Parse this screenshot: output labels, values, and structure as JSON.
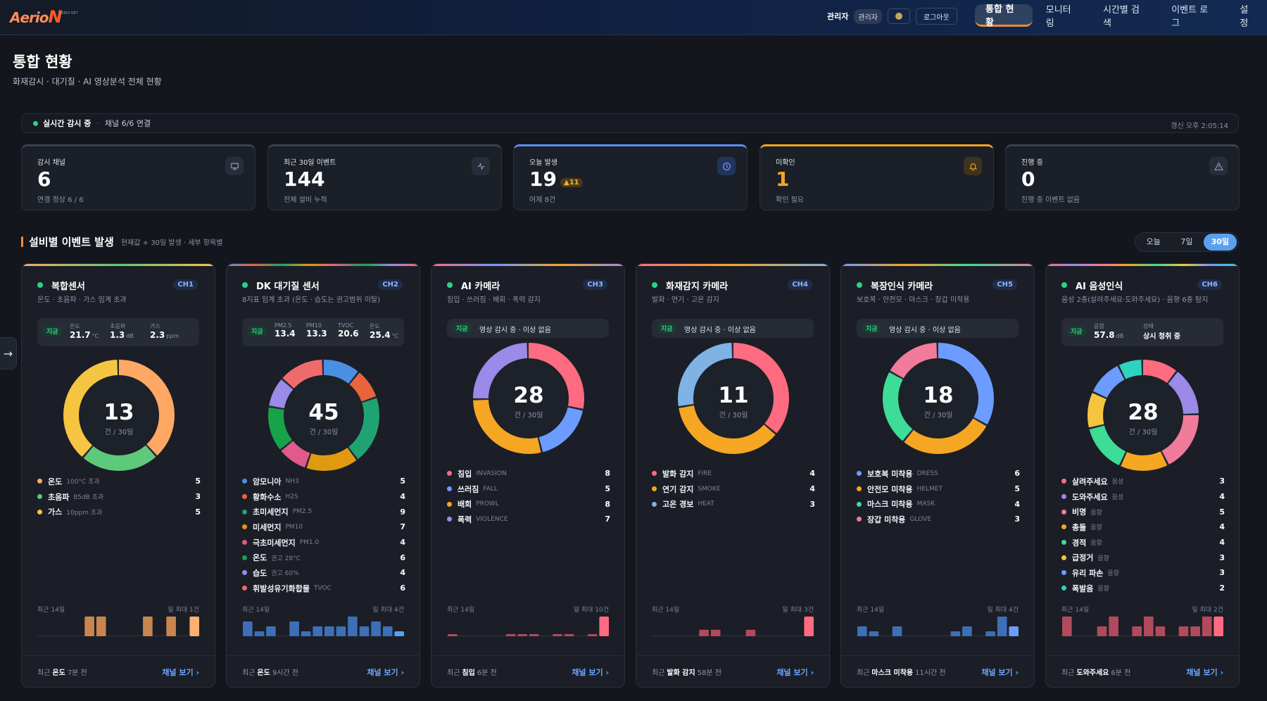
{
  "header": {
    "logo_a": "Aerio",
    "logo_b": "N",
    "logo_sub": "AERIO NET",
    "user_name": "관리자",
    "user_role": "관리자",
    "logout": "로그아웃",
    "nav": [
      {
        "label": "통합 현황"
      },
      {
        "label": "모니터링"
      },
      {
        "label": "시간별 검색"
      },
      {
        "label": "이벤트 로그"
      },
      {
        "label": "설정"
      }
    ],
    "active_nav": "통합 현황"
  },
  "page": {
    "title": "통합 현황",
    "subtitle": "화재감시 · 대기질 · AI 영상분석 전체 현황"
  },
  "status": {
    "live": "실시간 감시 중",
    "sep": "·",
    "channels": "채널 6/6 연결",
    "updated": "갱신 오후 2:05:14"
  },
  "stats": [
    {
      "label": "감시 채널",
      "value": "6",
      "sub": "연결 정상 6 / 6",
      "icon": "monitor-icon",
      "accent": "#3a4150"
    },
    {
      "label": "최근 30일 이벤트",
      "value": "144",
      "sub": "전체 설비 누적",
      "icon": "activity-icon",
      "accent": "#3a4150"
    },
    {
      "label": "오늘 발생",
      "value": "19",
      "badge": "▲11",
      "sub": "어제 8건",
      "icon": "clock-icon",
      "accent": "#5b8def"
    },
    {
      "label": "미확인",
      "value": "1",
      "sub": "확인 필요",
      "icon": "bell-icon",
      "accent": "#f5a623"
    },
    {
      "label": "진행 중",
      "value": "0",
      "sub": "진행 중 이벤트 없음",
      "icon": "alert-icon",
      "accent": "#3a4150"
    }
  ],
  "section": {
    "title": "설비별 이벤트 발생",
    "sub": "현재값 + 30일 발생 · 세부 항목별",
    "periods": [
      "오늘",
      "7일",
      "30일"
    ],
    "active_period": "30일"
  },
  "side_tab": "→",
  "common": {
    "now_tag": "지금",
    "unit_label": "건 / 30일",
    "recent_label": "최근 14일",
    "view_label": "채널 보기 ›",
    "recent_prefix": "최근"
  },
  "cards": [
    {
      "title": "복합센서",
      "ch": "CH1",
      "sub": "온도 · 초음파 · 가스 임계 초과",
      "bar": "#f5a86a",
      "metrics": [
        {
          "label": "온도",
          "value": "21.7",
          "unit": "°C"
        },
        {
          "label": "초음파",
          "value": "1.3",
          "unit": "dB"
        },
        {
          "label": "가스",
          "value": "2.3",
          "unit": "ppm"
        }
      ],
      "total": "13",
      "legend": [
        {
          "name": "온도",
          "sub": "100°C 초과",
          "count": 5,
          "color": "#ffa863"
        },
        {
          "name": "초음파",
          "sub": "85dB 초과",
          "count": 3,
          "color": "#5ec97a"
        },
        {
          "name": "가스",
          "sub": "10ppm 초과",
          "count": 5,
          "color": "#f5c542"
        }
      ],
      "max_label": "일 최대 1건",
      "spark": [
        0,
        0,
        0,
        0,
        1,
        1,
        0,
        0,
        0,
        1,
        0,
        1,
        0,
        1
      ],
      "spark_color": "#c98550",
      "spark_hi": "#ffb070",
      "recent_item": "온도",
      "recent_time": "7분 전"
    },
    {
      "title": "DK 대기질 센서",
      "ch": "CH2",
      "sub": "8지표 임계 초과 (온도 · 습도는 권고범위 이탈)",
      "bar": "#ff6b6b",
      "metrics": [
        {
          "label": "PM2.5",
          "value": "13.4",
          "unit": ""
        },
        {
          "label": "PM10",
          "value": "13.3",
          "unit": ""
        },
        {
          "label": "TVOC",
          "value": "20.6",
          "unit": ""
        },
        {
          "label": "온도",
          "value": "25.4",
          "unit": "°C"
        }
      ],
      "total": "45",
      "legend": [
        {
          "name": "암모니아",
          "sub": "NH3",
          "count": 5,
          "color": "#4a90e2"
        },
        {
          "name": "황화수소",
          "sub": "H2S",
          "count": 4,
          "color": "#e8643c"
        },
        {
          "name": "초미세먼지",
          "sub": "PM2.5",
          "count": 9,
          "color": "#1fa372"
        },
        {
          "name": "미세먼지",
          "sub": "PM10",
          "count": 7,
          "color": "#e09a10"
        },
        {
          "name": "극초미세먼지",
          "sub": "PM1.0",
          "count": 4,
          "color": "#e05a8a"
        },
        {
          "name": "온도",
          "sub": "권고 28°C",
          "count": 6,
          "color": "#16a34a"
        },
        {
          "name": "습도",
          "sub": "권고 60%",
          "count": 4,
          "color": "#9b8ae8"
        },
        {
          "name": "휘발성유기화합물",
          "sub": "TVOC",
          "count": 6,
          "color": "#ef6b6b"
        }
      ],
      "max_label": "일 최대 4건",
      "spark": [
        3,
        1,
        2,
        0,
        3,
        1,
        2,
        2,
        2,
        4,
        2,
        3,
        2,
        1
      ],
      "spark_color": "#3d6fb8",
      "spark_hi": "#5aa0f0",
      "recent_item": "온도",
      "recent_time": "9시간 전"
    },
    {
      "title": "AI 카메라",
      "ch": "CH3",
      "sub": "침입 · 쓰러짐 · 배회 · 폭력 감지",
      "bar": "#a78bfa",
      "status_msg": "영상 감시 중 · 이상 없음",
      "total": "28",
      "legend": [
        {
          "name": "침입",
          "sub": "INVASION",
          "count": 8,
          "color": "#ff6b81"
        },
        {
          "name": "쓰러짐",
          "sub": "FALL",
          "count": 5,
          "color": "#6c9cff"
        },
        {
          "name": "배회",
          "sub": "PROWL",
          "count": 8,
          "color": "#f5a623"
        },
        {
          "name": "폭력",
          "sub": "VIOLENCE",
          "count": 7,
          "color": "#9b8ae8"
        }
      ],
      "max_label": "일 최대 10건",
      "spark": [
        1,
        0,
        0,
        0,
        0,
        1,
        1,
        1,
        0,
        1,
        1,
        0,
        1,
        10
      ],
      "spark_color": "#b24a5e",
      "spark_hi": "#ff6b81",
      "recent_item": "침입",
      "recent_time": "6분 전"
    },
    {
      "title": "화재감지 카메라",
      "ch": "CH4",
      "sub": "발화 · 연기 · 고온 감지",
      "bar": "#6c9cff",
      "status_msg": "영상 감시 중 · 이상 없음",
      "total": "11",
      "legend": [
        {
          "name": "발화 감지",
          "sub": "FIRE",
          "count": 4,
          "color": "#ff6b81"
        },
        {
          "name": "연기 감지",
          "sub": "SMOKE",
          "count": 4,
          "color": "#f5a623"
        },
        {
          "name": "고온 경보",
          "sub": "HEAT",
          "count": 3,
          "color": "#7fb2e5"
        }
      ],
      "max_label": "일 최대 3건",
      "spark": [
        0,
        0,
        0,
        0,
        1,
        1,
        0,
        0,
        1,
        0,
        0,
        0,
        0,
        3
      ],
      "spark_color": "#b24a5e",
      "spark_hi": "#ff6b81",
      "recent_item": "발화 감지",
      "recent_time": "58분 전"
    },
    {
      "title": "복장인식 카메라",
      "ch": "CH5",
      "sub": "보호복 · 안전모 · 마스크 · 장갑 미착용",
      "bar": "#f27a9a",
      "status_msg": "영상 감시 중 · 이상 없음",
      "total": "18",
      "legend": [
        {
          "name": "보호복 미착용",
          "sub": "DRESS",
          "count": 6,
          "color": "#6c9cff"
        },
        {
          "name": "안전모 미착용",
          "sub": "HELMET",
          "count": 5,
          "color": "#f5a623"
        },
        {
          "name": "마스크 미착용",
          "sub": "MASK",
          "count": 4,
          "color": "#3ddc97"
        },
        {
          "name": "장갑 미착용",
          "sub": "GLOVE",
          "count": 3,
          "color": "#f27a9a"
        }
      ],
      "max_label": "일 최대 4건",
      "spark": [
        2,
        1,
        0,
        2,
        0,
        0,
        0,
        0,
        1,
        2,
        0,
        1,
        4,
        2
      ],
      "spark_color": "#3d6fb8",
      "spark_hi": "#6c9cff",
      "recent_item": "마스크 미착용",
      "recent_time": "11시간 전"
    },
    {
      "title": "AI 음성인식",
      "ch": "CH6",
      "sub": "음성 2종(살려주세요·도와주세요) · 음향 6종 탐지",
      "bar": "#e879c9",
      "metrics": [
        {
          "label": "음압",
          "value": "57.8",
          "unit": "dB"
        },
        {
          "label": "상태",
          "value": "상시 청취 중",
          "unit": ""
        }
      ],
      "total": "28",
      "legend": [
        {
          "name": "살려주세요",
          "sub": "음성",
          "count": 3,
          "color": "#ff6b81"
        },
        {
          "name": "도와주세요",
          "sub": "음성",
          "count": 4,
          "color": "#9b8ae8"
        },
        {
          "name": "비명",
          "sub": "음향",
          "count": 5,
          "color": "#f27a9a"
        },
        {
          "name": "총돌",
          "sub": "음향",
          "count": 4,
          "color": "#f5a623"
        },
        {
          "name": "경적",
          "sub": "음향",
          "count": 4,
          "color": "#3ddc97"
        },
        {
          "name": "급정거",
          "sub": "음향",
          "count": 3,
          "color": "#f5c542"
        },
        {
          "name": "유리 파손",
          "sub": "음향",
          "count": 3,
          "color": "#6c9cff"
        },
        {
          "name": "폭발음",
          "sub": "음향",
          "count": 2,
          "color": "#2dd4bf"
        }
      ],
      "max_label": "일 최대 2건",
      "spark": [
        2,
        0,
        0,
        1,
        2,
        0,
        1,
        2,
        1,
        0,
        1,
        1,
        2,
        2
      ],
      "spark_color": "#b24a5e",
      "spark_hi": "#ff6b81",
      "recent_item": "도와주세요",
      "recent_time": "6분 전"
    }
  ]
}
